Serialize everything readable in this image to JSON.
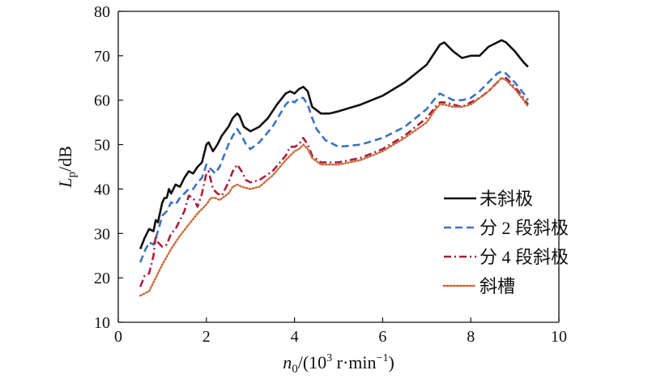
{
  "chart_data": {
    "type": "line",
    "title": "",
    "xlabel": "n0/(10³ r·min⁻¹)",
    "ylabel": "Lp/dB",
    "xlabel_parts": {
      "symbol": "n",
      "subscript": "0",
      "unit": "/(10",
      "power": "3",
      "unit_rest": " r·min",
      "neg_power": "−1",
      "close": ")"
    },
    "ylabel_parts": {
      "symbol": "L",
      "subscript": "p",
      "unit": "/dB"
    },
    "xlim": [
      0,
      10
    ],
    "ylim": [
      10,
      80
    ],
    "xticks": [
      "0",
      "2",
      "4",
      "6",
      "8",
      "10"
    ],
    "yticks": [
      "10",
      "20",
      "30",
      "40",
      "50",
      "60",
      "70",
      "80"
    ],
    "grid": false,
    "legend_position": "right",
    "series": [
      {
        "name": "未斜极",
        "color": "#111111",
        "dash": "solid",
        "x": [
          0.5,
          0.6,
          0.7,
          0.8,
          0.85,
          0.9,
          1.0,
          1.05,
          1.1,
          1.15,
          1.2,
          1.3,
          1.4,
          1.5,
          1.6,
          1.7,
          1.8,
          1.9,
          2.0,
          2.05,
          2.15,
          2.25,
          2.35,
          2.5,
          2.6,
          2.7,
          2.75,
          2.85,
          3.0,
          3.2,
          3.4,
          3.6,
          3.8,
          3.9,
          4.0,
          4.1,
          4.2,
          4.3,
          4.4,
          4.6,
          4.8,
          5.0,
          5.5,
          6.0,
          6.5,
          7.0,
          7.2,
          7.3,
          7.4,
          7.6,
          7.8,
          8.0,
          8.2,
          8.4,
          8.6,
          8.7,
          8.8,
          9.0,
          9.2,
          9.3
        ],
        "y": [
          26.5,
          29,
          31,
          30.5,
          33,
          32.5,
          37,
          38,
          38,
          40,
          39,
          41,
          40.5,
          42.5,
          44,
          43.5,
          45,
          46,
          50,
          50.5,
          48.5,
          50,
          52,
          54,
          56,
          57,
          56.5,
          54,
          53,
          54,
          56,
          59,
          61.5,
          62,
          61.5,
          62.5,
          63,
          62,
          58.5,
          57,
          57,
          57.5,
          59,
          61,
          64,
          68,
          71,
          72.5,
          73,
          71,
          69.5,
          70,
          70,
          72,
          73,
          73.5,
          73,
          71,
          68.5,
          67.5
        ]
      },
      {
        "name": "分 2 段斜极",
        "color": "#3d73c0",
        "dash": "dashed",
        "x": [
          0.5,
          0.6,
          0.7,
          0.8,
          0.9,
          1.0,
          1.1,
          1.2,
          1.3,
          1.4,
          1.5,
          1.6,
          1.7,
          1.8,
          1.9,
          2.0,
          2.1,
          2.2,
          2.3,
          2.5,
          2.6,
          2.7,
          2.8,
          2.9,
          3.0,
          3.2,
          3.5,
          3.8,
          3.9,
          4.0,
          4.1,
          4.2,
          4.3,
          4.4,
          4.5,
          4.7,
          5.0,
          5.5,
          6.0,
          6.5,
          7.0,
          7.2,
          7.3,
          7.4,
          7.6,
          7.8,
          8.0,
          8.2,
          8.4,
          8.6,
          8.7,
          8.8,
          9.0,
          9.2,
          9.3
        ],
        "y": [
          23.5,
          26,
          28,
          27.5,
          30.5,
          34,
          35,
          37,
          36.5,
          38,
          39,
          40,
          40,
          41.5,
          42.5,
          45.5,
          44.5,
          43.5,
          45,
          50,
          52,
          53.5,
          52,
          50,
          49,
          50.5,
          54,
          59,
          60,
          59.5,
          60.5,
          60.5,
          59,
          56,
          53.5,
          51,
          49.5,
          50,
          51.5,
          54,
          58,
          60.5,
          61.5,
          61,
          60,
          60,
          60.5,
          62,
          64,
          66,
          66.5,
          66,
          64,
          61.5,
          60
        ]
      },
      {
        "name": "分 4 段斜极",
        "color": "#a8203c",
        "dash": "dashdot",
        "x": [
          0.5,
          0.6,
          0.7,
          0.8,
          0.85,
          0.9,
          1.0,
          1.1,
          1.2,
          1.3,
          1.4,
          1.5,
          1.6,
          1.7,
          1.8,
          1.9,
          2.0,
          2.05,
          2.15,
          2.25,
          2.35,
          2.5,
          2.6,
          2.7,
          2.8,
          2.9,
          3.0,
          3.2,
          3.5,
          3.8,
          3.9,
          4.0,
          4.1,
          4.2,
          4.3,
          4.4,
          4.6,
          5.0,
          5.5,
          6.0,
          6.5,
          7.0,
          7.2,
          7.3,
          7.4,
          7.6,
          7.8,
          8.0,
          8.2,
          8.4,
          8.6,
          8.7,
          8.8,
          9.0,
          9.2,
          9.3
        ],
        "y": [
          18,
          20.5,
          21,
          25,
          29.5,
          28,
          27,
          27.5,
          30,
          31,
          33,
          35,
          38.5,
          38,
          36,
          39,
          43.5,
          44,
          40,
          39,
          38.5,
          41.5,
          44,
          45.5,
          44,
          42,
          41.5,
          42,
          44,
          47.5,
          49.5,
          49.5,
          50,
          51.5,
          50,
          47.5,
          46,
          46,
          47,
          49,
          52,
          56,
          58.5,
          59.5,
          59.5,
          59,
          58.5,
          59.5,
          60.5,
          62,
          64,
          65,
          65,
          63,
          60.5,
          59
        ]
      },
      {
        "name": "斜槽",
        "color": "#c96a3a",
        "dash": "dotted",
        "x": [
          0.5,
          0.6,
          0.7,
          0.8,
          0.9,
          1.0,
          1.2,
          1.4,
          1.6,
          1.8,
          2.0,
          2.1,
          2.2,
          2.3,
          2.5,
          2.6,
          2.7,
          2.8,
          3.0,
          3.2,
          3.5,
          3.8,
          4.0,
          4.1,
          4.2,
          4.3,
          4.4,
          4.6,
          5.0,
          5.5,
          6.0,
          6.5,
          7.0,
          7.2,
          7.3,
          7.4,
          7.6,
          7.8,
          8.0,
          8.2,
          8.4,
          8.6,
          8.7,
          8.8,
          9.0,
          9.2,
          9.3
        ],
        "y": [
          16,
          16.5,
          17,
          19,
          21,
          23,
          26.5,
          29.5,
          32,
          34.5,
          36.5,
          38,
          38,
          37.5,
          39,
          40.5,
          41,
          40.5,
          40,
          40.5,
          43,
          46.5,
          48.5,
          49,
          50,
          49,
          47,
          45.5,
          45.5,
          46.5,
          48.5,
          51.5,
          55,
          58,
          59,
          59,
          58.5,
          58.5,
          59,
          60.5,
          62,
          64,
          65,
          64.5,
          62.5,
          60,
          58.5
        ]
      }
    ]
  }
}
